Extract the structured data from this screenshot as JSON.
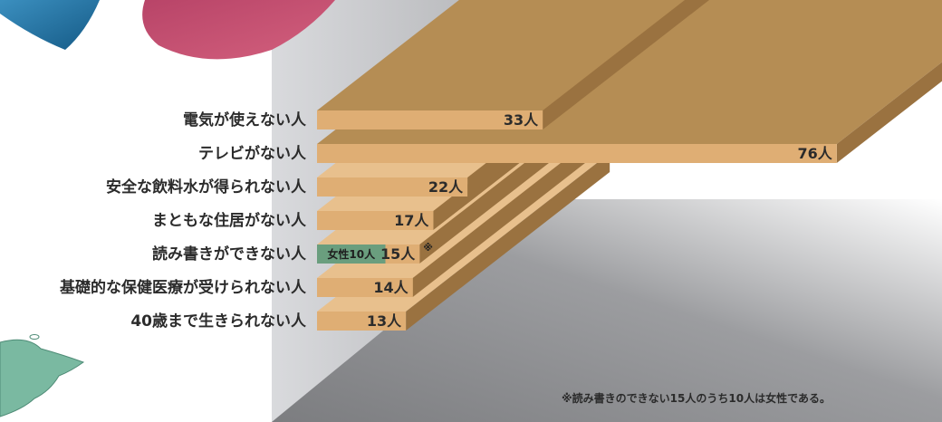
{
  "chart_data": {
    "type": "bar",
    "orientation": "horizontal",
    "style": "3d",
    "unit": "人",
    "categories": [
      "電気が使えない人",
      "テレビがない人",
      "安全な飲料水が得られない人",
      "まともな住居がない人",
      "読み書きができない人",
      "基礎的な保健医療が受けられない人",
      "40歳まで生きられない人"
    ],
    "values": [
      33,
      76,
      22,
      17,
      15,
      14,
      13
    ],
    "value_labels": [
      "33人",
      "76人",
      "22人",
      "17人",
      "15人",
      "14人",
      "13人"
    ],
    "sub_segment": {
      "category": "読み書きができない人",
      "label": "女性10人",
      "value": 10,
      "note_mark": "※",
      "color": "#6a9e7e"
    },
    "footnote": "※読み書きのできない15人のうち10人は女性である。",
    "colors": {
      "bar_front": "#dfae74",
      "bar_top": "#b58d54",
      "bar_top_dark": "#e8c08d",
      "bar_side": "#9a7240",
      "wall": "#cfd0d3",
      "floor": "#8f9093",
      "pie_blue": "#1f6e9e",
      "pie_pink": "#c24e6f",
      "map_green": "#7ab9a1"
    }
  }
}
